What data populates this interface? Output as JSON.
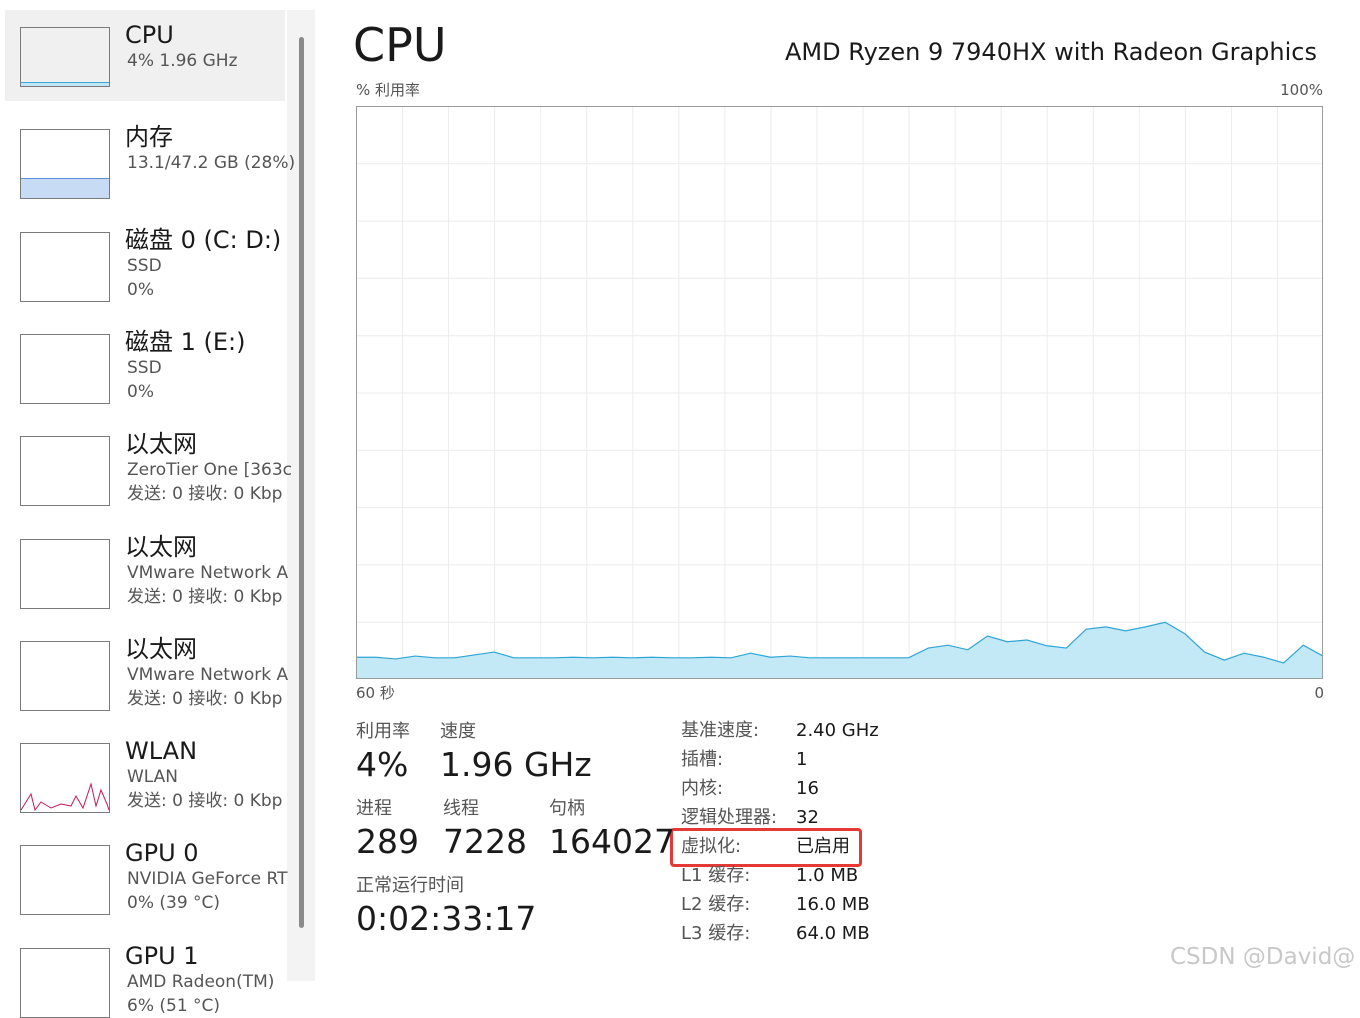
{
  "sidebar": [
    {
      "title": "CPU",
      "line1": "4%  1.96 GHz"
    },
    {
      "title": "内存",
      "line1": "13.1/47.2 GB (28%)"
    },
    {
      "title": "磁盘 0 (C: D:)",
      "line1": "SSD",
      "line2": "0%"
    },
    {
      "title": "磁盘 1 (E:)",
      "line1": "SSD",
      "line2": "0%"
    },
    {
      "title": "以太网",
      "line1": "ZeroTier One [363c",
      "line2": "发送: 0  接收: 0 Kbp"
    },
    {
      "title": "以太网",
      "line1": "VMware Network A",
      "line2": "发送: 0  接收: 0 Kbp"
    },
    {
      "title": "以太网",
      "line1": "VMware Network A",
      "line2": "发送: 0  接收: 0 Kbp"
    },
    {
      "title": "WLAN",
      "line1": "WLAN",
      "line2": "发送: 0  接收: 0 Kbp"
    },
    {
      "title": "GPU 0",
      "line1": "NVIDIA GeForce RT",
      "line2": "0%  (39 °C)"
    },
    {
      "title": "GPU 1",
      "line1": "AMD Radeon(TM)",
      "line2": "6%  (51 °C)"
    }
  ],
  "header": {
    "title": "CPU",
    "processor": "AMD Ryzen 9 7940HX with Radeon Graphics"
  },
  "graph": {
    "y_label": "% 利用率",
    "y_max_label": "100%",
    "x_start_label": "60 秒",
    "x_end_label": "0",
    "ylim": [
      0,
      100
    ],
    "values": [
      3.8,
      3.8,
      3.5,
      4.0,
      3.7,
      3.7,
      4.2,
      4.7,
      3.7,
      3.7,
      3.7,
      3.8,
      3.7,
      3.8,
      3.7,
      3.8,
      3.7,
      3.7,
      3.8,
      3.7,
      4.5,
      3.8,
      4.0,
      3.7,
      3.7,
      3.7,
      3.7,
      3.7,
      3.7,
      5.4,
      5.9,
      5.1,
      7.5,
      6.5,
      6.8,
      5.8,
      5.4,
      8.7,
      9.1,
      8.4,
      9.1,
      9.9,
      7.9,
      4.7,
      3.3,
      4.5,
      3.8,
      2.8,
      5.9,
      4.0
    ]
  },
  "stats": [
    {
      "label": "利用率",
      "value": "4%"
    },
    {
      "label": "速度",
      "value": "1.96 GHz"
    },
    {
      "label": "进程",
      "value": "289"
    },
    {
      "label": "线程",
      "value": "7228"
    },
    {
      "label": "句柄",
      "value": "164027"
    },
    {
      "label": "正常运行时间",
      "value": "0:02:33:17"
    }
  ],
  "details": [
    {
      "label": "基准速度:",
      "value": "2.40 GHz"
    },
    {
      "label": "插槽:",
      "value": "1"
    },
    {
      "label": "内核:",
      "value": "16"
    },
    {
      "label": "逻辑处理器:",
      "value": "32"
    },
    {
      "label": "虚拟化:",
      "value": "已启用"
    },
    {
      "label": "L1 缓存:",
      "value": "1.0 MB"
    },
    {
      "label": "L2 缓存:",
      "value": "16.0 MB"
    },
    {
      "label": "L3 缓存:",
      "value": "64.0 MB"
    }
  ],
  "watermark": "CSDN @David@"
}
